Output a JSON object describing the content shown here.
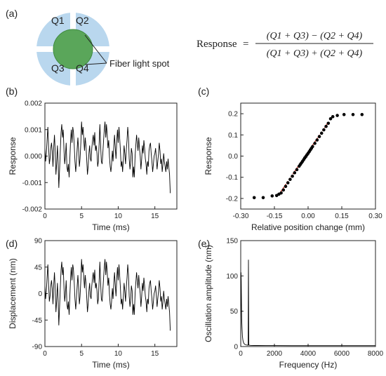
{
  "panel_labels": {
    "a": "(a)",
    "b": "(b)",
    "c": "(c)",
    "d": "(d)",
    "e": "(e)"
  },
  "diagram": {
    "quadrants": [
      "Q1",
      "Q2",
      "Q3",
      "Q4"
    ],
    "spot_label": "Fiber light spot",
    "colors": {
      "quadrant": "#b9d7ee",
      "spot": "#5aa65a",
      "spot_edge": "#3f8a3f"
    }
  },
  "formula": {
    "lhs": "Response",
    "eq": "=",
    "numerator": "(Q1 + Q3) − (Q2 + Q4)",
    "denominator": "(Q1 + Q3) + (Q2 + Q4)"
  },
  "chart_data": [
    {
      "id": "b",
      "type": "line",
      "xlabel": "Time (ms)",
      "ylabel": "Response",
      "xlim": [
        0,
        18
      ],
      "ylim": [
        -0.002,
        0.002
      ],
      "xticks": [
        "0",
        "5",
        "10",
        "15"
      ],
      "yticks": [
        "-0.002",
        "-0.001",
        "0.000",
        "0.001",
        "0.002"
      ],
      "series": [
        {
          "x_start": 0,
          "x_step": 0.1,
          "color": "#000000",
          "values": [
            0.0003,
            -0.0002,
            0.0001,
            0.0006,
            0.0011,
            0.0004,
            -0.0003,
            -0.0001,
            0.0003,
            0.0005,
            0.0002,
            -0.0004,
            0.0003,
            0.0008,
            0.0002,
            -0.0007,
            -0.0003,
            0.0004,
            -0.0002,
            -0.0012,
            -0.0005,
            0.0002,
            0.0009,
            0.0012,
            0.0007,
            0.001,
            0.0002,
            -0.0003,
            0.0,
            0.0005,
            -0.0004,
            -0.0006,
            -0.0003,
            -0.0008,
            -0.0001,
            0.0006,
            0.001,
            0.0005,
            0.0011,
            0.0009,
            0.0004,
            -0.0002,
            -0.0006,
            -0.0002,
            0.0003,
            0.0007,
            0.0002,
            -0.0004,
            -0.0001,
            0.0005,
            0.0013,
            0.0008,
            0.0011,
            0.0006,
            0.0002,
            0.0007,
            0.0004,
            -0.0001,
            -0.0007,
            -0.0004,
            0.0001,
            0.0004,
            -0.0001,
            -0.0002,
            0.0003,
            0.0006,
            0.0008,
            0.0004,
            0.0009,
            0.0002,
            0.0004,
            0.0001,
            -0.0004,
            -0.0002,
            0.0005,
            0.0012,
            0.0004,
            -0.0002,
            -0.0003,
            0.0001,
            0.0006,
            0.001,
            0.0013,
            0.0007,
            0.0012,
            0.0008,
            0.0003,
            0.0006,
            0.0,
            -0.0004,
            -0.0006,
            -0.0003,
            0.0002,
            -0.0002,
            0.0004,
            0.0008,
            0.0003,
            -0.0001,
            0.0006,
            0.001,
            0.0005,
            0.0011,
            0.0007,
            0.0002,
            -0.0004,
            -0.0002,
            -0.0006,
            -0.0001,
            0.0004,
            0.0001,
            -0.0003,
            0.0002,
            0.0006,
            0.0011,
            0.0007,
            -0.0001,
            -0.0005,
            -0.0002,
            0.0003,
            0.0001,
            -0.0008,
            -0.0004,
            -0.0008,
            0.0,
            0.0004,
            0.0008,
            0.0005,
            0.0002,
            0.0007,
            0.0003,
            0.0,
            -0.0005,
            -0.0001,
            0.0004,
            0.0001,
            0.0006,
            0.0003,
            -0.0001,
            -0.0003,
            -0.0007,
            -0.0002,
            -0.0004,
            0.0002,
            0.0004,
            0.0005,
            0.0001,
            -0.0002,
            -0.0006,
            -0.0003,
            0.0,
            0.0001,
            0.0003,
            -0.0001,
            -0.0005,
            -0.0002,
            0.0001,
            0.0005,
            0.0002,
            -0.0003,
            -0.0001,
            -0.0006,
            -0.0003,
            0.0001,
            -0.0002,
            -0.0004,
            -0.0006,
            -0.0002,
            -0.0005,
            -0.0001,
            -0.0004,
            -0.0007,
            -0.0014
          ]
        }
      ]
    },
    {
      "id": "c",
      "type": "scatter",
      "xlabel": "Relative position change (mm)",
      "ylabel": "Response",
      "xlim": [
        -0.3,
        0.3
      ],
      "ylim": [
        -0.25,
        0.25
      ],
      "xticks": [
        "-0.30",
        "-0.15",
        "0.00",
        "0.15",
        "0.30"
      ],
      "yticks": [
        "-0.2",
        "-0.1",
        "0.0",
        "0.1",
        "0.2"
      ],
      "series": [
        {
          "color": "#000000",
          "x": [
            -0.24,
            -0.2,
            -0.16,
            -0.14,
            -0.13,
            -0.12,
            -0.11,
            -0.1,
            -0.09,
            -0.08,
            -0.07,
            -0.06,
            -0.05,
            -0.04,
            -0.035,
            -0.03,
            -0.025,
            -0.02,
            -0.015,
            -0.01,
            -0.005,
            0.0,
            0.005,
            0.01,
            0.015,
            0.02,
            0.03,
            0.04,
            0.05,
            0.06,
            0.07,
            0.08,
            0.09,
            0.1,
            0.11,
            0.13,
            0.16,
            0.2,
            0.24
          ],
          "y": [
            -0.196,
            -0.196,
            -0.188,
            -0.186,
            -0.18,
            -0.174,
            -0.16,
            -0.143,
            -0.126,
            -0.11,
            -0.095,
            -0.079,
            -0.064,
            -0.048,
            -0.04,
            -0.033,
            -0.025,
            -0.017,
            -0.009,
            -0.002,
            0.006,
            0.013,
            0.021,
            0.029,
            0.037,
            0.045,
            0.06,
            0.076,
            0.092,
            0.108,
            0.124,
            0.14,
            0.155,
            0.176,
            0.186,
            0.192,
            0.196,
            0.196,
            0.196
          ]
        }
      ],
      "fit": {
        "color": "#c0392b",
        "x": [
          -0.13,
          0.09
        ],
        "y": [
          -0.181,
          0.16
        ]
      }
    },
    {
      "id": "d",
      "type": "line",
      "xlabel": "Time (ms)",
      "ylabel": "Displacement (nm)",
      "xlim": [
        0,
        18
      ],
      "ylim": [
        -90,
        90
      ],
      "xticks": [
        "0",
        "5",
        "10",
        "15"
      ],
      "yticks": [
        "-90",
        "-45",
        "0",
        "45",
        "90"
      ],
      "series": [
        {
          "x_start": 0,
          "x_step": 0.1,
          "color": "#000000",
          "scale_from": "b",
          "scale": 45000
        }
      ]
    },
    {
      "id": "e",
      "type": "line",
      "xlabel": "Frequency (Hz)",
      "ylabel": "Oscillation amplitude (nm)",
      "xlim": [
        0,
        8000
      ],
      "ylim": [
        0,
        150
      ],
      "xticks": [
        "0",
        "2000",
        "4000",
        "6000",
        "8000"
      ],
      "yticks": [
        "0",
        "50",
        "100",
        "150"
      ],
      "series": [
        {
          "color": "#000000",
          "x": [
            0,
            15,
            30,
            45,
            60,
            80,
            100,
            130,
            160,
            200,
            250,
            300,
            350,
            400,
            440,
            460,
            480,
            500,
            520,
            540,
            600,
            800,
            1000,
            1500,
            2000,
            3000,
            4000,
            5000,
            6000,
            7000,
            8000
          ],
          "y": [
            0,
            105,
            93,
            60,
            38,
            25,
            15,
            9,
            6,
            4,
            3,
            2.5,
            2.2,
            2,
            2,
            123,
            2,
            2,
            1.8,
            1.8,
            1.6,
            1.5,
            1.5,
            1.4,
            1.4,
            1.3,
            1.3,
            1.3,
            1.3,
            1.3,
            1.3
          ]
        }
      ]
    }
  ]
}
